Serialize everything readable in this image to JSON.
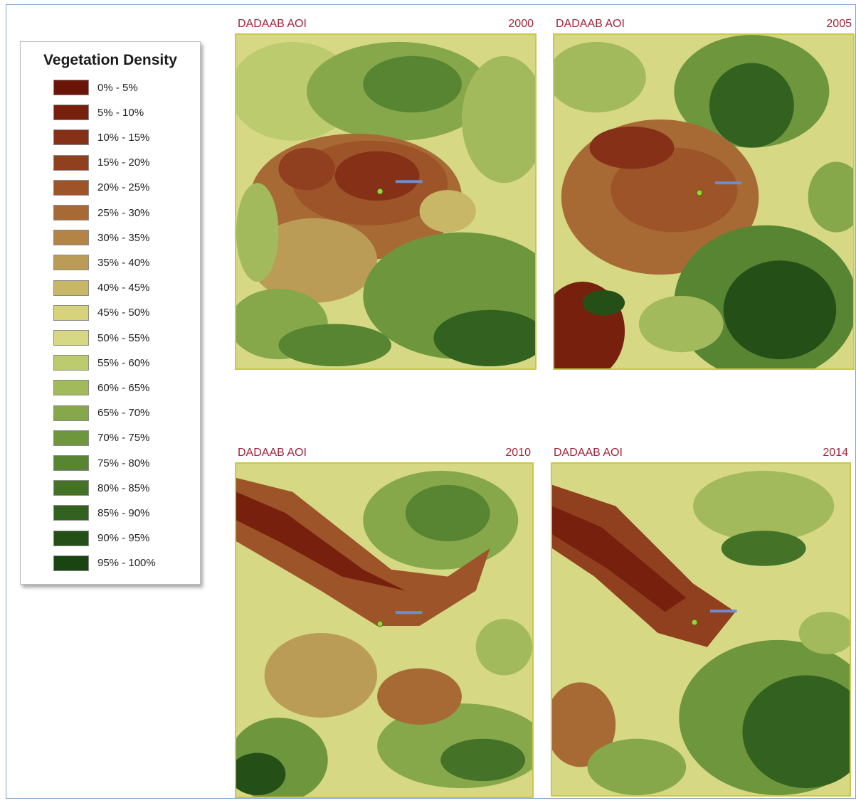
{
  "legend": {
    "title": "Vegetation Density",
    "items": [
      {
        "label": "0% - 5%",
        "color": "#6b1408"
      },
      {
        "label": "5% - 10%",
        "color": "#78200e"
      },
      {
        "label": "10% - 15%",
        "color": "#853017"
      },
      {
        "label": "15% - 20%",
        "color": "#90401f"
      },
      {
        "label": "20% - 25%",
        "color": "#9c5428"
      },
      {
        "label": "25% - 30%",
        "color": "#a86a35"
      },
      {
        "label": "30% - 35%",
        "color": "#b38445"
      },
      {
        "label": "35% - 40%",
        "color": "#bb9c57"
      },
      {
        "label": "40% - 45%",
        "color": "#c8b767"
      },
      {
        "label": "45% - 50%",
        "color": "#d7d37a"
      },
      {
        "label": "50% - 55%",
        "color": "#d6d884"
      },
      {
        "label": "55% - 60%",
        "color": "#bccb6e"
      },
      {
        "label": "60% - 65%",
        "color": "#a2ba5c"
      },
      {
        "label": "65% - 70%",
        "color": "#86a84b"
      },
      {
        "label": "70% - 75%",
        "color": "#6e963d"
      },
      {
        "label": "75% - 80%",
        "color": "#578532"
      },
      {
        "label": "80% - 85%",
        "color": "#447328"
      },
      {
        "label": "85% - 90%",
        "color": "#33611f"
      },
      {
        "label": "90% - 95%",
        "color": "#245018"
      },
      {
        "label": "95% - 100%",
        "color": "#1a4412"
      }
    ]
  },
  "maps": [
    {
      "title": "DADAAB AOI",
      "year": "2000"
    },
    {
      "title": "DADAAB AOI",
      "year": "2005"
    },
    {
      "title": "DADAAB AOI",
      "year": "2010"
    },
    {
      "title": "DADAAB AOI",
      "year": "2014"
    }
  ],
  "colors": {
    "title_text": "#a1243a",
    "map_border": "#c8c84a",
    "frame_border": "#7f9fcf",
    "marker": "#9fd13b",
    "scale_bar": "#6c8ed0"
  }
}
